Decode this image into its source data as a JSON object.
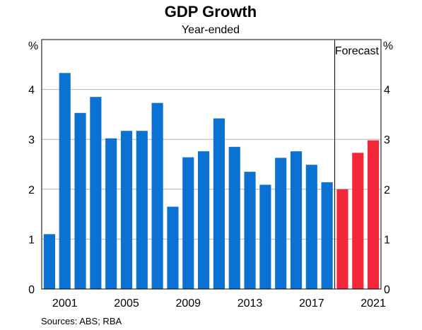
{
  "chart_data": {
    "type": "bar",
    "title": "GDP Growth",
    "subtitle": "Year-ended",
    "y_unit_left": "%",
    "y_unit_right": "%",
    "ylim": [
      0,
      5
    ],
    "yticks": [
      "0",
      "1",
      "2",
      "3",
      "4"
    ],
    "xticks": [
      "2001",
      "2005",
      "2009",
      "2013",
      "2017",
      "2021"
    ],
    "grid": true,
    "forecast_label": "Forecast",
    "source": "Sources:   ABS; RBA",
    "colors": {
      "actual": "#0b72d3",
      "forecast": "#f2283a",
      "grid": "#b4b4b4"
    },
    "series": [
      {
        "key": "actual",
        "x": [
          2000,
          2001,
          2002,
          2003,
          2004,
          2005,
          2006,
          2007,
          2008,
          2009,
          2010,
          2011,
          2012,
          2013,
          2014,
          2015,
          2016,
          2017,
          2018
        ],
        "values": [
          1.1,
          4.33,
          3.53,
          3.85,
          3.02,
          3.17,
          3.17,
          3.73,
          1.65,
          2.64,
          2.76,
          3.42,
          2.85,
          2.35,
          2.09,
          2.63,
          2.76,
          2.49,
          2.14
        ]
      },
      {
        "key": "forecast",
        "x": [
          2019,
          2020,
          2021
        ],
        "values": [
          2.0,
          2.73,
          2.98
        ]
      }
    ]
  }
}
